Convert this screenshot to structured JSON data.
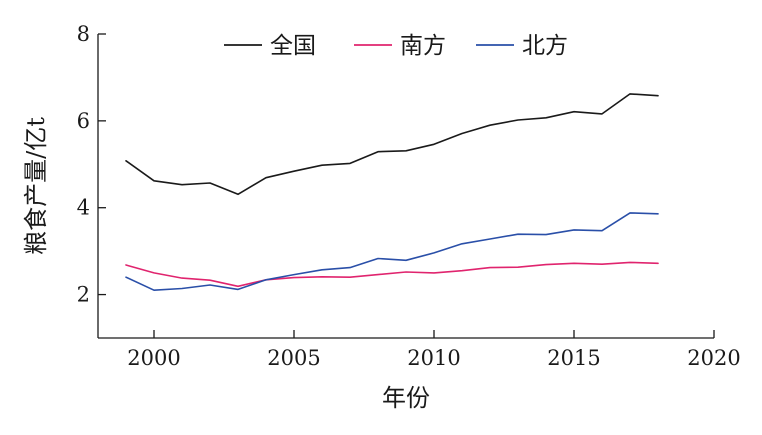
{
  "chart_data": {
    "type": "line",
    "xlabel": "年份",
    "ylabel": "粮食产量/亿t",
    "xlim": [
      1998,
      2020
    ],
    "ylim": [
      1,
      8
    ],
    "xticks": [
      2000,
      2005,
      2010,
      2015,
      2020
    ],
    "yticks": [
      2,
      4,
      6,
      8
    ],
    "grid": false,
    "legend_position": "top-center",
    "x": [
      1999,
      2000,
      2001,
      2002,
      2003,
      2004,
      2005,
      2006,
      2007,
      2008,
      2009,
      2010,
      2011,
      2012,
      2013,
      2014,
      2015,
      2016,
      2017,
      2018
    ],
    "series": [
      {
        "name": "全国",
        "color": "#1a1a1a",
        "values": [
          5.08,
          4.62,
          4.53,
          4.57,
          4.31,
          4.69,
          4.84,
          4.98,
          5.02,
          5.29,
          5.31,
          5.46,
          5.71,
          5.9,
          6.02,
          6.07,
          6.21,
          6.16,
          6.62,
          6.58
        ]
      },
      {
        "name": "南方",
        "color": "#e0246e",
        "values": [
          2.68,
          2.5,
          2.38,
          2.33,
          2.19,
          2.34,
          2.39,
          2.41,
          2.4,
          2.46,
          2.52,
          2.5,
          2.55,
          2.62,
          2.63,
          2.69,
          2.72,
          2.7,
          2.74,
          2.72
        ]
      },
      {
        "name": "北方",
        "color": "#2a4fa8",
        "values": [
          2.4,
          2.1,
          2.14,
          2.22,
          2.12,
          2.34,
          2.46,
          2.57,
          2.62,
          2.83,
          2.79,
          2.96,
          3.17,
          3.28,
          3.39,
          3.38,
          3.49,
          3.47,
          3.88,
          3.86
        ]
      }
    ]
  }
}
